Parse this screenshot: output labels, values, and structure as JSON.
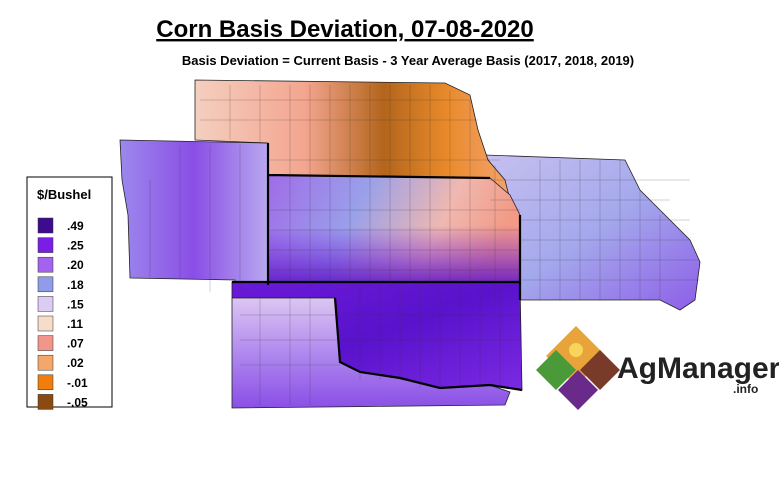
{
  "title": "Corn Basis Deviation, 07-08-2020",
  "subtitle": "Basis Deviation = Current Basis - 3 Year Average Basis (2017, 2018, 2019)",
  "legend": {
    "title": "$/Bushel",
    "items": [
      {
        "label": ".49",
        "color": "#3e0b8e"
      },
      {
        "label": ".25",
        "color": "#7a1ee6"
      },
      {
        "label": ".20",
        "color": "#a463ee"
      },
      {
        "label": ".18",
        "color": "#8e9ce9"
      },
      {
        "label": ".15",
        "color": "#dccbf3"
      },
      {
        "label": ".11",
        "color": "#f5dccb"
      },
      {
        "label": ".07",
        "color": "#f2968c"
      },
      {
        "label": ".02",
        "color": "#f5a76b"
      },
      {
        "label": "-.01",
        "color": "#f07d0c"
      },
      {
        "label": "-.05",
        "color": "#8a4a12"
      }
    ]
  },
  "logo": {
    "name": "AgManager",
    "suffix": ".info"
  }
}
